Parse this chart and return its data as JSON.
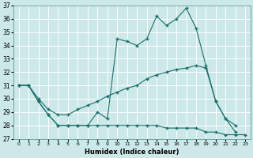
{
  "xlabel": "Humidex (Indice chaleur)",
  "bg_color": "#cce8e8",
  "grid_color": "#ffffff",
  "line_color": "#1a6e6a",
  "xlim": [
    -0.5,
    23.5
  ],
  "ylim": [
    27,
    37
  ],
  "xticks": [
    0,
    1,
    2,
    3,
    4,
    5,
    6,
    7,
    8,
    9,
    10,
    11,
    12,
    13,
    14,
    15,
    16,
    17,
    18,
    19,
    20,
    21,
    22,
    23
  ],
  "yticks": [
    27,
    28,
    29,
    30,
    31,
    32,
    33,
    34,
    35,
    36,
    37
  ],
  "series": [
    {
      "x": [
        0,
        1,
        2,
        3,
        4,
        5,
        6,
        7,
        8,
        9,
        10,
        11,
        12,
        13,
        14,
        15,
        16,
        17,
        18,
        19,
        20,
        21,
        22,
        23
      ],
      "y": [
        31.0,
        31.0,
        29.8,
        28.8,
        28.0,
        28.0,
        28.0,
        28.0,
        28.0,
        28.0,
        28.0,
        28.0,
        28.0,
        28.0,
        28.0,
        27.8,
        27.8,
        27.8,
        27.8,
        27.5,
        27.5,
        27.3,
        27.3,
        27.3
      ]
    },
    {
      "x": [
        0,
        1,
        2,
        3,
        4,
        5,
        6,
        7,
        8,
        9,
        10,
        11,
        12,
        13,
        14,
        15,
        16,
        17,
        18,
        19,
        20,
        21,
        22
      ],
      "y": [
        31.0,
        31.0,
        29.8,
        28.8,
        28.0,
        28.0,
        28.0,
        28.0,
        29.0,
        28.5,
        34.5,
        34.3,
        34.0,
        34.5,
        36.2,
        35.5,
        36.0,
        36.8,
        35.3,
        32.5,
        29.8,
        28.5,
        27.5
      ]
    },
    {
      "x": [
        0,
        1,
        2,
        3,
        4,
        5,
        6,
        7,
        8,
        9,
        10,
        11,
        12,
        13,
        14,
        15,
        16,
        17,
        18,
        19,
        20,
        21,
        22
      ],
      "y": [
        31.0,
        31.0,
        30.0,
        29.2,
        28.8,
        28.8,
        29.2,
        29.5,
        29.8,
        30.2,
        30.5,
        30.8,
        31.0,
        31.5,
        31.8,
        32.0,
        32.2,
        32.3,
        32.5,
        32.3,
        29.8,
        28.5,
        28.0
      ]
    }
  ]
}
